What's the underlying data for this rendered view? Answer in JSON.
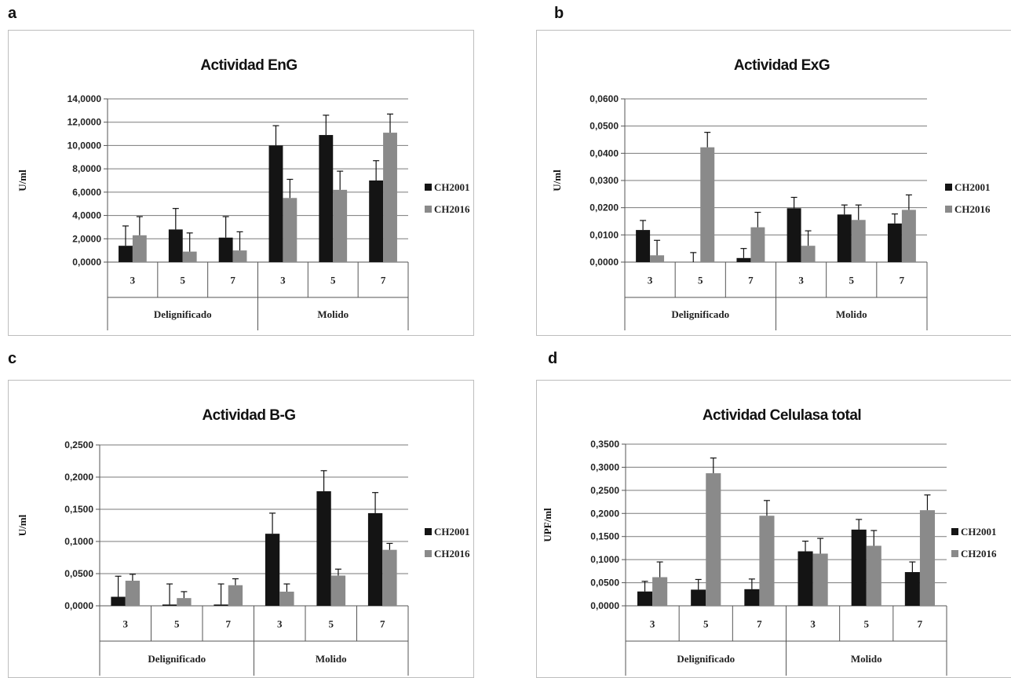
{
  "panel_letters": [
    "a",
    "b",
    "c",
    "d"
  ],
  "colors": {
    "series1": "#141414",
    "series2": "#8a8a8a",
    "grid": "#7a7a7a",
    "axis": "#555555"
  },
  "chart_data": [
    {
      "type": "bar",
      "title": "Actividad EnG",
      "ylabel": "U/ml",
      "xlabel": "",
      "groups": [
        {
          "label": "Delignificado",
          "categories": [
            "3",
            "5",
            "7"
          ]
        },
        {
          "label": "Molido",
          "categories": [
            "3",
            "5",
            "7"
          ]
        }
      ],
      "categories": [
        "3",
        "5",
        "7",
        "3",
        "5",
        "7"
      ],
      "ylim": [
        0,
        14
      ],
      "yticks": [
        0,
        2,
        4,
        6,
        8,
        10,
        12,
        14
      ],
      "yticklabels": [
        "0,0000",
        "2,0000",
        "4,0000",
        "6,0000",
        "8,0000",
        "10,0000",
        "12,0000",
        "14,0000"
      ],
      "series": [
        {
          "name": "CH2001",
          "values": [
            1.4,
            2.8,
            2.1,
            10.0,
            10.9,
            7.0
          ],
          "errors": [
            1.7,
            1.8,
            1.8,
            1.7,
            1.7,
            1.7
          ]
        },
        {
          "name": "CH2016",
          "values": [
            2.3,
            0.9,
            1.0,
            5.5,
            6.2,
            11.1
          ],
          "errors": [
            1.6,
            1.6,
            1.6,
            1.6,
            1.6,
            1.6
          ]
        }
      ],
      "legend": "right",
      "grid": true
    },
    {
      "type": "bar",
      "title": "Actividad ExG",
      "ylabel": "U/ml",
      "xlabel": "",
      "groups": [
        {
          "label": "Delignificado",
          "categories": [
            "3",
            "5",
            "7"
          ]
        },
        {
          "label": "Molido",
          "categories": [
            "3",
            "5",
            "7"
          ]
        }
      ],
      "categories": [
        "3",
        "5",
        "7",
        "3",
        "5",
        "7"
      ],
      "ylim": [
        0,
        0.06
      ],
      "yticks": [
        0,
        0.01,
        0.02,
        0.03,
        0.04,
        0.05,
        0.06
      ],
      "yticklabels": [
        "0,0000",
        "0,0100",
        "0,0200",
        "0,0300",
        "0,0400",
        "0,0500",
        "0,0600"
      ],
      "series": [
        {
          "name": "CH2001",
          "values": [
            0.0118,
            0.0,
            0.0015,
            0.0198,
            0.0175,
            0.0142
          ],
          "errors": [
            0.0035,
            0.0035,
            0.0035,
            0.004,
            0.0035,
            0.0035
          ]
        },
        {
          "name": "CH2016",
          "values": [
            0.0025,
            0.0422,
            0.0128,
            0.006,
            0.0155,
            0.0192
          ],
          "errors": [
            0.0055,
            0.0055,
            0.0055,
            0.0055,
            0.0055,
            0.0055
          ]
        }
      ],
      "legend": "right",
      "grid": true
    },
    {
      "type": "bar",
      "title": "Actividad B-G",
      "ylabel": "U/ml",
      "xlabel": "",
      "groups": [
        {
          "label": "Delignificado",
          "categories": [
            "3",
            "5",
            "7"
          ]
        },
        {
          "label": "Molido",
          "categories": [
            "3",
            "5",
            "7"
          ]
        }
      ],
      "categories": [
        "3",
        "5",
        "7",
        "3",
        "5",
        "7"
      ],
      "ylim": [
        0,
        0.25
      ],
      "yticks": [
        0,
        0.05,
        0.1,
        0.15,
        0.2,
        0.25
      ],
      "yticklabels": [
        "0,0000",
        "0,0500",
        "0,1000",
        "0,1500",
        "0,2000",
        "0,2500"
      ],
      "series": [
        {
          "name": "CH2001",
          "values": [
            0.014,
            0.002,
            0.002,
            0.112,
            0.178,
            0.144
          ],
          "errors": [
            0.032,
            0.032,
            0.032,
            0.032,
            0.032,
            0.032
          ]
        },
        {
          "name": "CH2016",
          "values": [
            0.039,
            0.012,
            0.032,
            0.022,
            0.047,
            0.087
          ],
          "errors": [
            0.01,
            0.01,
            0.01,
            0.012,
            0.01,
            0.01
          ]
        }
      ],
      "legend": "right",
      "grid": true
    },
    {
      "type": "bar",
      "title": "Actividad Celulasa total",
      "ylabel": "UPF/ml",
      "xlabel": "",
      "groups": [
        {
          "label": "Delignificado",
          "categories": [
            "3",
            "5",
            "7"
          ]
        },
        {
          "label": "Molido",
          "categories": [
            "3",
            "5",
            "7"
          ]
        }
      ],
      "categories": [
        "3",
        "5",
        "7",
        "3",
        "5",
        "7"
      ],
      "ylim": [
        0,
        0.35
      ],
      "yticks": [
        0,
        0.05,
        0.1,
        0.15,
        0.2,
        0.25,
        0.3,
        0.35
      ],
      "yticklabels": [
        "0,0000",
        "0,0500",
        "0,1000",
        "0,1500",
        "0,2000",
        "0,2500",
        "0,3000",
        "0,3500"
      ],
      "series": [
        {
          "name": "CH2001",
          "values": [
            0.031,
            0.035,
            0.036,
            0.118,
            0.165,
            0.073
          ],
          "errors": [
            0.022,
            0.022,
            0.022,
            0.022,
            0.022,
            0.022
          ]
        },
        {
          "name": "CH2016",
          "values": [
            0.062,
            0.287,
            0.195,
            0.113,
            0.13,
            0.207
          ],
          "errors": [
            0.033,
            0.033,
            0.033,
            0.033,
            0.033,
            0.033
          ]
        }
      ],
      "legend": "right",
      "grid": true
    }
  ]
}
